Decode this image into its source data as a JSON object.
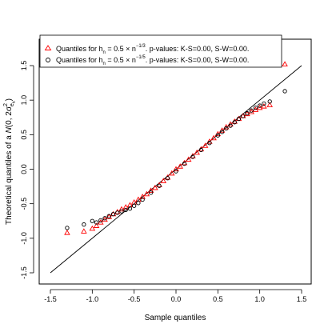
{
  "chart_data": {
    "type": "scatter",
    "xlabel": "Sample quantiles",
    "ylabel": "Theoretical quantiles of a N(0, 2σ²ₑₒ)",
    "xlim": [
      -1.6,
      1.6
    ],
    "ylim": [
      -1.6,
      1.6
    ],
    "x_ticks": [
      -1.5,
      -1.0,
      -0.5,
      0.0,
      0.5,
      1.0,
      1.5
    ],
    "y_ticks": [
      -1.5,
      -1.0,
      -0.5,
      0.0,
      0.5,
      1.0,
      1.5
    ],
    "x_tick_labels": [
      "-1.5",
      "-1.0",
      "-0.5",
      "0.0",
      "0.5",
      "1.0",
      "1.5"
    ],
    "y_tick_labels": [
      "-1.5",
      "-1.0",
      "-0.5",
      "0.0",
      "0.5",
      "1.0",
      "1.5"
    ],
    "grid": false,
    "legend_position": "top-left",
    "reference_line": {
      "x": [
        -1.5,
        1.5
      ],
      "y": [
        -1.5,
        1.5
      ],
      "color": "#000000"
    },
    "series": [
      {
        "name": "Quantiles for hₙ = 0.5 × n⁻¹ᐟ³. p-values:  K-S=0.00, S-W=0.00.",
        "marker": "triangle",
        "color": "#ff0000",
        "x": [
          -1.3,
          -1.1,
          -1.0,
          -0.95,
          -0.9,
          -0.85,
          -0.8,
          -0.75,
          -0.7,
          -0.65,
          -0.6,
          -0.55,
          -0.5,
          -0.45,
          -0.4,
          -0.35,
          -0.3,
          -0.25,
          -0.2,
          -0.15,
          -0.1,
          -0.05,
          0.0,
          0.05,
          0.1,
          0.15,
          0.2,
          0.25,
          0.3,
          0.35,
          0.4,
          0.45,
          0.5,
          0.55,
          0.6,
          0.65,
          0.7,
          0.75,
          0.8,
          0.85,
          0.9,
          0.95,
          1.0,
          1.05,
          1.12,
          1.3
        ],
        "y": [
          -0.92,
          -0.9,
          -0.86,
          -0.82,
          -0.77,
          -0.73,
          -0.69,
          -0.65,
          -0.62,
          -0.58,
          -0.55,
          -0.52,
          -0.48,
          -0.44,
          -0.4,
          -0.36,
          -0.31,
          -0.27,
          -0.23,
          -0.17,
          -0.12,
          -0.06,
          0.0,
          0.04,
          0.09,
          0.14,
          0.19,
          0.24,
          0.29,
          0.34,
          0.4,
          0.45,
          0.51,
          0.56,
          0.61,
          0.65,
          0.69,
          0.73,
          0.77,
          0.8,
          0.83,
          0.86,
          0.89,
          0.91,
          0.93,
          1.52
        ]
      },
      {
        "name": "Quantiles for hₙ = 0.5 × n⁻¹ᐟ⁵. p-values:  K-S=0.00, S-W=0.00.",
        "marker": "circle",
        "color": "#000000",
        "x": [
          -1.3,
          -1.1,
          -1.0,
          -0.95,
          -0.9,
          -0.85,
          -0.8,
          -0.75,
          -0.7,
          -0.65,
          -0.6,
          -0.55,
          -0.5,
          -0.45,
          -0.4,
          -0.3,
          -0.2,
          -0.1,
          0.0,
          0.1,
          0.2,
          0.3,
          0.4,
          0.5,
          0.55,
          0.6,
          0.65,
          0.7,
          0.75,
          0.8,
          0.85,
          0.9,
          0.95,
          1.0,
          1.05,
          1.12,
          1.3
        ],
        "y": [
          -0.85,
          -0.8,
          -0.75,
          -0.77,
          -0.74,
          -0.71,
          -0.68,
          -0.65,
          -0.63,
          -0.61,
          -0.59,
          -0.57,
          -0.53,
          -0.49,
          -0.44,
          -0.34,
          -0.24,
          -0.13,
          -0.03,
          0.08,
          0.18,
          0.28,
          0.38,
          0.49,
          0.54,
          0.59,
          0.63,
          0.68,
          0.73,
          0.77,
          0.81,
          0.85,
          0.89,
          0.92,
          0.95,
          0.98,
          1.13
        ]
      }
    ]
  },
  "legend": {
    "entries": [
      {
        "prefix": "Quantiles for h",
        "sub": "n",
        "mid": " = 0.5 × n",
        "sup": "−1/3",
        "suffix": ". p-values:  K-S=0.00, S-W=0.00."
      },
      {
        "prefix": "Quantiles for h",
        "sub": "n",
        "mid": " = 0.5 × n",
        "sup": "−1/5",
        "suffix": ". p-values:  K-S=0.00, S-W=0.00."
      }
    ]
  },
  "axis_titles": {
    "x": "Sample quantiles",
    "y_prefix": "Theoretical quantiles of a ",
    "y_dist": "N",
    "y_args_pre": "(0, 2σ",
    "y_sup": "2",
    "y_sub": "e",
    "y_sub2": "h",
    "y_args_post": ")"
  }
}
